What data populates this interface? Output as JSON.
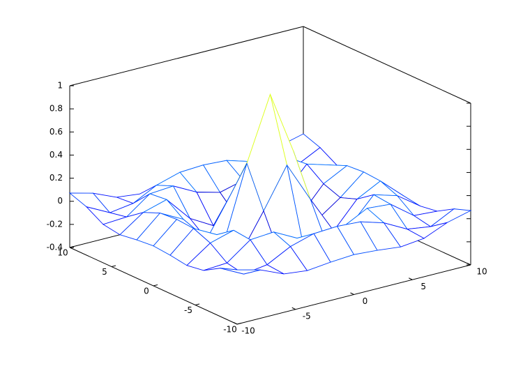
{
  "chart_data": {
    "type": "surface",
    "colormap": "jet",
    "x": [
      -10,
      -8,
      -6,
      -4,
      -2,
      0,
      2,
      4,
      6,
      8,
      10
    ],
    "y": [
      -10,
      -8,
      -6,
      -4,
      -2,
      0,
      2,
      4,
      6,
      8,
      10
    ],
    "z": [
      [
        0.0707,
        0.0186,
        -0.0674,
        -0.0905,
        -0.0685,
        -0.0544,
        -0.0685,
        -0.0905,
        -0.0674,
        0.0186,
        0.0707
      ],
      [
        0.0186,
        -0.0839,
        -0.0544,
        0.0517,
        0.1121,
        0.1237,
        0.1121,
        0.0517,
        -0.0544,
        -0.0839,
        0.0186
      ],
      [
        -0.0674,
        -0.0544,
        0.0951,
        0.111,
        0.0066,
        -0.0466,
        0.0066,
        0.111,
        0.0951,
        -0.0544,
        -0.0674
      ],
      [
        -0.0905,
        0.0517,
        0.111,
        -0.1036,
        -0.2172,
        -0.1892,
        -0.2172,
        -0.1036,
        0.111,
        0.0517,
        -0.0905
      ],
      [
        -0.0685,
        0.1121,
        0.0066,
        -0.2172,
        0.1091,
        0.4546,
        0.1091,
        -0.2172,
        0.0066,
        0.1121,
        -0.0685
      ],
      [
        -0.0544,
        0.1237,
        -0.0466,
        -0.1892,
        0.4546,
        1,
        0.4546,
        -0.1892,
        -0.0466,
        0.1237,
        -0.0544
      ],
      [
        -0.0685,
        0.1121,
        0.0066,
        -0.2172,
        0.1091,
        0.4546,
        0.1091,
        -0.2172,
        0.0066,
        0.1121,
        -0.0685
      ],
      [
        -0.0905,
        0.0517,
        0.111,
        -0.1036,
        -0.2172,
        -0.1892,
        -0.2172,
        -0.1036,
        0.111,
        0.0517,
        -0.0905
      ],
      [
        -0.0674,
        -0.0544,
        0.0951,
        0.111,
        0.0066,
        -0.0466,
        0.0066,
        0.111,
        0.0951,
        -0.0544,
        -0.0674
      ],
      [
        0.0186,
        -0.0839,
        -0.0544,
        0.0517,
        0.1121,
        0.1237,
        0.1121,
        0.0517,
        -0.0544,
        -0.0839,
        0.0186
      ],
      [
        0.0707,
        0.0186,
        -0.0674,
        -0.0905,
        -0.0685,
        -0.0544,
        -0.0685,
        -0.0905,
        -0.0674,
        0.0186,
        0.0707
      ]
    ],
    "xlim": [
      -10,
      10
    ],
    "xticks": [
      -10,
      -5,
      0,
      5,
      10
    ],
    "ylim": [
      -10,
      10
    ],
    "yticks": [
      -10,
      -5,
      0,
      5,
      10
    ],
    "zlim": [
      -0.4,
      1
    ],
    "zticks": [
      -0.4,
      -0.2,
      0,
      0.2,
      0.4,
      0.6,
      0.8,
      1
    ]
  }
}
